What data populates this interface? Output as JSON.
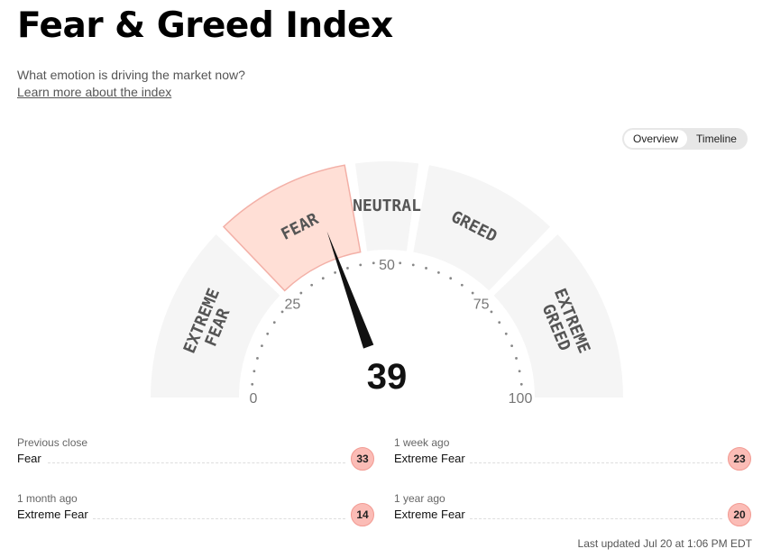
{
  "header": {
    "title": "Fear & Greed Index",
    "subtitle": "What emotion is driving the market now?",
    "learn_more": "Learn more about the index"
  },
  "view_toggle": {
    "options": [
      "Overview",
      "Timeline"
    ],
    "selected": "Overview"
  },
  "gauge": {
    "value": 39,
    "value_text": "39",
    "min": 0,
    "max": 100,
    "active_zone": "fear",
    "zones": [
      {
        "key": "extreme-fear",
        "label": [
          "EXTREME",
          "FEAR"
        ],
        "from": 0,
        "to": 25
      },
      {
        "key": "fear",
        "label": [
          "FEAR"
        ],
        "from": 25,
        "to": 45
      },
      {
        "key": "neutral",
        "label": [
          "NEUTRAL"
        ],
        "from": 45,
        "to": 55
      },
      {
        "key": "greed",
        "label": [
          "GREED"
        ],
        "from": 55,
        "to": 75
      },
      {
        "key": "extreme-greed",
        "label": [
          "EXTREME",
          "GREED"
        ],
        "from": 75,
        "to": 100
      }
    ],
    "ticks": [
      "0",
      "25",
      "50",
      "75",
      "100"
    ],
    "colors": {
      "zone": "#f5f5f5",
      "active_zone": "#ffdfd6",
      "active_zone_border": "#f3b0a7",
      "zone_label": "#555555",
      "needle": "#111111",
      "tick_label": "#777777"
    }
  },
  "history": [
    {
      "when": "Previous close",
      "label": "Fear",
      "value": "33"
    },
    {
      "when": "1 week ago",
      "label": "Extreme Fear",
      "value": "23"
    },
    {
      "when": "1 month ago",
      "label": "Extreme Fear",
      "value": "14"
    },
    {
      "when": "1 year ago",
      "label": "Extreme Fear",
      "value": "20"
    }
  ],
  "footer": {
    "last_updated": "Last updated Jul 20 at 1:06 PM EDT"
  }
}
